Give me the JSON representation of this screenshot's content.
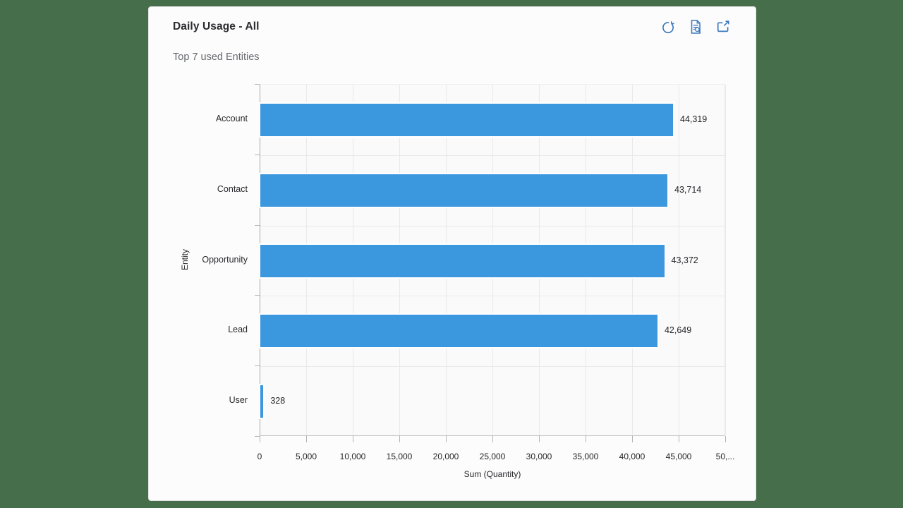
{
  "card": {
    "title": "Daily Usage - All",
    "subtitle": "Top 7 used Entities",
    "toolbar": {
      "icons": [
        "refresh",
        "view-records",
        "popout"
      ]
    }
  },
  "chart_data": {
    "type": "bar",
    "orientation": "horizontal",
    "title": "Top 7 used Entities",
    "categories": [
      "Account",
      "Contact",
      "Opportunity",
      "Lead",
      "User"
    ],
    "values": [
      44319,
      43714,
      43372,
      42649,
      328
    ],
    "value_labels": [
      "44,319",
      "43,714",
      "43,372",
      "42,649",
      "328"
    ],
    "xlabel": "Sum (Quantity)",
    "ylabel": "Entity",
    "xlim": [
      0,
      50000
    ],
    "x_ticks": [
      "0",
      "5,000",
      "10,000",
      "15,000",
      "20,000",
      "25,000",
      "30,000",
      "35,000",
      "40,000",
      "45,000",
      "50,..."
    ],
    "grid": true,
    "legend": false,
    "bar_color": "#3B97DE"
  },
  "colors": {
    "page_background": "#476E4B",
    "card_background": "#FCFCFD",
    "plot_background": "#FAFAFB",
    "gridline": "#E9E9EA",
    "bar": "#3B97DE",
    "icon_blue": "#3B79BD",
    "title_text": "#2B2B30",
    "subtitle_text": "#66696D"
  }
}
